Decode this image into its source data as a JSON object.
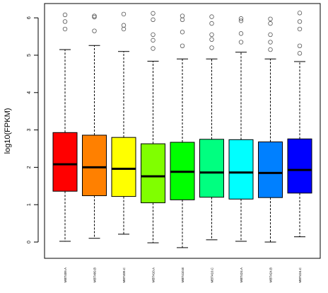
{
  "chart_data": {
    "type": "boxplot",
    "title": "",
    "xlabel": "",
    "ylabel": "log10(FPKM)",
    "ylim": [
      -0.2,
      6.4
    ],
    "yticks": [
      0,
      1,
      2,
      3,
      4,
      5,
      6
    ],
    "grid": false,
    "legend": "none",
    "categories": [
      "MBT409.A",
      "MBT409.B",
      "MBT409.C",
      "MBT410.A",
      "MBT410.B",
      "MBT410.C",
      "MBT424.A",
      "MBT424.B",
      "MBT424.C"
    ],
    "colors": [
      "#ff0000",
      "#ff8000",
      "#ffff00",
      "#80ff00",
      "#00ff00",
      "#00ff80",
      "#00ffff",
      "#0080ff",
      "#0000ff"
    ],
    "boxes": [
      {
        "whisker_low": 0.02,
        "q1": 1.36,
        "median": 2.08,
        "q3": 2.93,
        "whisker_high": 5.15,
        "outliers": [
          5.7,
          5.9,
          6.08
        ]
      },
      {
        "whisker_low": 0.1,
        "q1": 1.24,
        "median": 2.0,
        "q3": 2.86,
        "whisker_high": 5.26,
        "outliers": [
          5.65,
          6.02,
          6.05
        ]
      },
      {
        "whisker_low": 0.21,
        "q1": 1.22,
        "median": 1.96,
        "q3": 2.8,
        "whisker_high": 5.1,
        "outliers": [
          5.7,
          5.8,
          6.1
        ]
      },
      {
        "whisker_low": -0.02,
        "q1": 1.05,
        "median": 1.76,
        "q3": 2.63,
        "whisker_high": 4.84,
        "outliers": [
          5.18,
          5.4,
          5.55,
          5.95,
          6.12
        ]
      },
      {
        "whisker_low": -0.15,
        "q1": 1.13,
        "median": 1.88,
        "q3": 2.67,
        "whisker_high": 4.9,
        "outliers": [
          5.25,
          5.62,
          5.95,
          6.05
        ]
      },
      {
        "whisker_low": 0.06,
        "q1": 1.2,
        "median": 1.86,
        "q3": 2.75,
        "whisker_high": 4.9,
        "outliers": [
          5.2,
          5.42,
          5.55,
          5.85,
          6.03
        ]
      },
      {
        "whisker_low": 0.02,
        "q1": 1.15,
        "median": 1.86,
        "q3": 2.74,
        "whisker_high": 5.08,
        "outliers": [
          5.35,
          5.58,
          5.92,
          5.98
        ]
      },
      {
        "whisker_low": 0.0,
        "q1": 1.19,
        "median": 1.85,
        "q3": 2.68,
        "whisker_high": 4.9,
        "outliers": [
          5.15,
          5.35,
          5.55,
          5.85,
          5.97
        ]
      },
      {
        "whisker_low": 0.14,
        "q1": 1.31,
        "median": 1.93,
        "q3": 2.76,
        "whisker_high": 4.83,
        "outliers": [
          5.05,
          5.25,
          5.7,
          5.9,
          6.13
        ]
      }
    ]
  }
}
